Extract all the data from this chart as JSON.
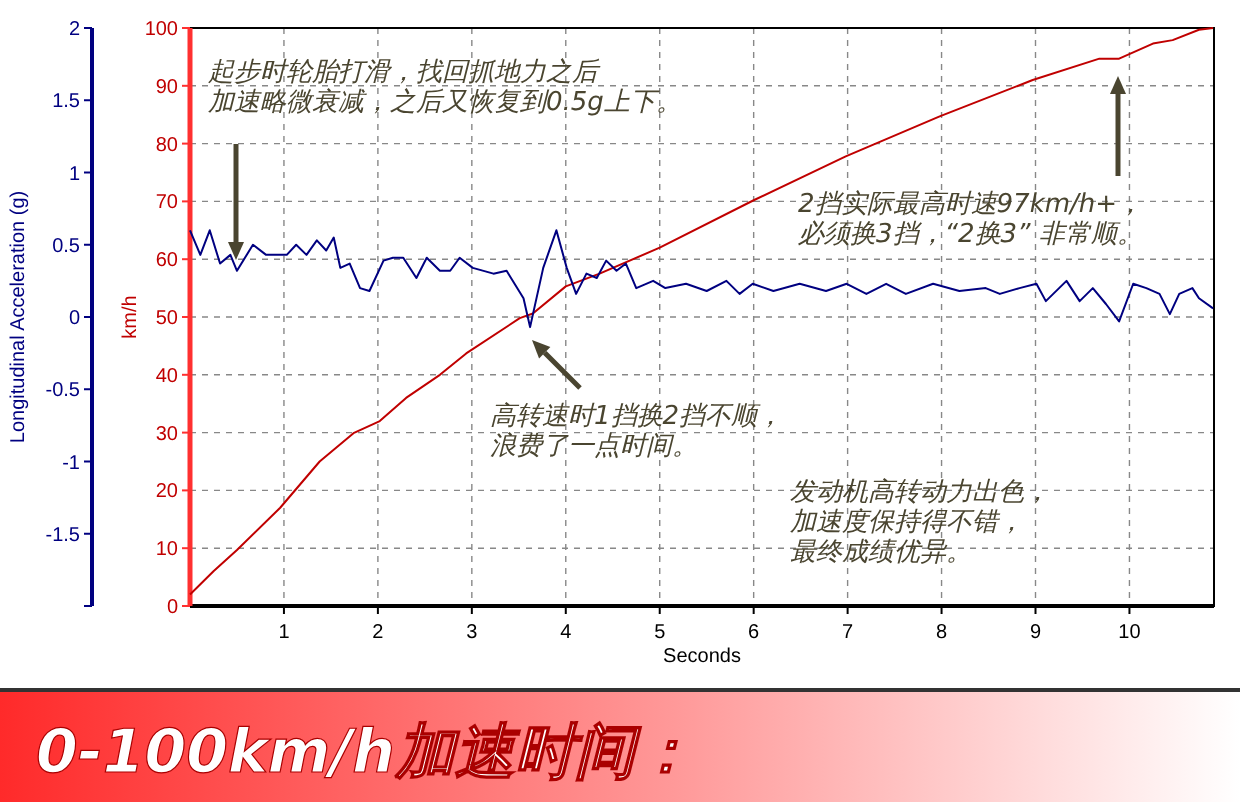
{
  "chart_data": {
    "type": "line",
    "title": "0-100km/h加速时间：",
    "xlabel": "Seconds",
    "ylabel": "km/h",
    "y2label": "Longitudinal Acceleration (g)",
    "xlim": [
      0,
      10.9
    ],
    "xticks": [
      1,
      2,
      3,
      4,
      5,
      6,
      7,
      8,
      9,
      10
    ],
    "ylim": [
      0,
      100
    ],
    "yticks": [
      0,
      10,
      20,
      30,
      40,
      50,
      60,
      70,
      80,
      90,
      100
    ],
    "y2lim": [
      -2,
      2
    ],
    "y2ticks": [
      {
        "value": -2,
        "label": null
      },
      -1.5,
      -1,
      -0.5,
      0,
      0.5,
      1,
      1.5,
      2
    ],
    "grid": true,
    "marker": "none",
    "line_style": "solid",
    "series": [
      {
        "color": "#c00000",
        "x": [
          0,
          0.25,
          0.5,
          0.96,
          1.38,
          1.74,
          2.02,
          2.3,
          2.66,
          2.94,
          3.51,
          3.65,
          4.0,
          4.36,
          5.0,
          6.0,
          6.98,
          7.98,
          8.97,
          9.68,
          9.89,
          10.25,
          10.46,
          10.74,
          10.89
        ],
        "values": [
          2,
          6,
          9.7,
          17,
          25,
          29.9,
          32,
          36,
          40,
          43.7,
          49.8,
          50.6,
          55.3,
          57.5,
          62,
          70.2,
          77.8,
          84.7,
          91,
          94.7,
          94.7,
          97.3,
          97.9,
          99.7,
          100
        ]
      },
      {
        "color": "#000080",
        "axis": "y2",
        "x": [
          0,
          0.11,
          0.21,
          0.32,
          0.43,
          0.5,
          0.67,
          0.81,
          1.03,
          1.13,
          1.24,
          1.35,
          1.45,
          1.53,
          1.6,
          1.7,
          1.81,
          1.91,
          2.06,
          2.16,
          2.27,
          2.41,
          2.52,
          2.66,
          2.77,
          2.87,
          3.01,
          3.23,
          3.37,
          3.55,
          3.62,
          3.76,
          3.9,
          4.01,
          4.11,
          4.22,
          4.33,
          4.43,
          4.54,
          4.64,
          4.75,
          4.93,
          5.06,
          5.28,
          5.5,
          5.71,
          5.85,
          5.99,
          6.21,
          6.49,
          6.77,
          6.99,
          7.2,
          7.41,
          7.62,
          7.91,
          8.19,
          8.47,
          8.62,
          8.83,
          9.01,
          9.11,
          9.33,
          9.47,
          9.61,
          9.75,
          9.89,
          10.04,
          10.18,
          10.32,
          10.43,
          10.53,
          10.67,
          10.74,
          10.89
        ],
        "values": [
          0.6,
          0.43,
          0.6,
          0.37,
          0.43,
          0.32,
          0.5,
          0.43,
          0.43,
          0.5,
          0.43,
          0.53,
          0.46,
          0.55,
          0.34,
          0.37,
          0.2,
          0.18,
          0.39,
          0.41,
          0.41,
          0.27,
          0.41,
          0.32,
          0.32,
          0.41,
          0.34,
          0.3,
          0.32,
          0.13,
          -0.07,
          0.34,
          0.6,
          0.34,
          0.16,
          0.3,
          0.27,
          0.39,
          0.32,
          0.37,
          0.2,
          0.25,
          0.2,
          0.23,
          0.18,
          0.25,
          0.16,
          0.23,
          0.18,
          0.23,
          0.18,
          0.23,
          0.16,
          0.23,
          0.16,
          0.23,
          0.18,
          0.2,
          0.16,
          0.2,
          0.23,
          0.11,
          0.25,
          0.11,
          0.2,
          0.09,
          -0.03,
          0.23,
          0.2,
          0.16,
          0.02,
          0.16,
          0.2,
          0.13,
          0.06
        ]
      }
    ],
    "annotations": [
      "起步时轮胎打滑，找回抓地力之后加速略微衰减，之后又恢复到0.5g上下。",
      "高转速时1挡换2挡不顺，浪费了一点时间。",
      "2挡实际最高时速97km/h+，必须换3挡，“2换3” 非常顺。",
      "发动机高转动力出色，加速度保持得不错，最终成绩优异。"
    ]
  }
}
